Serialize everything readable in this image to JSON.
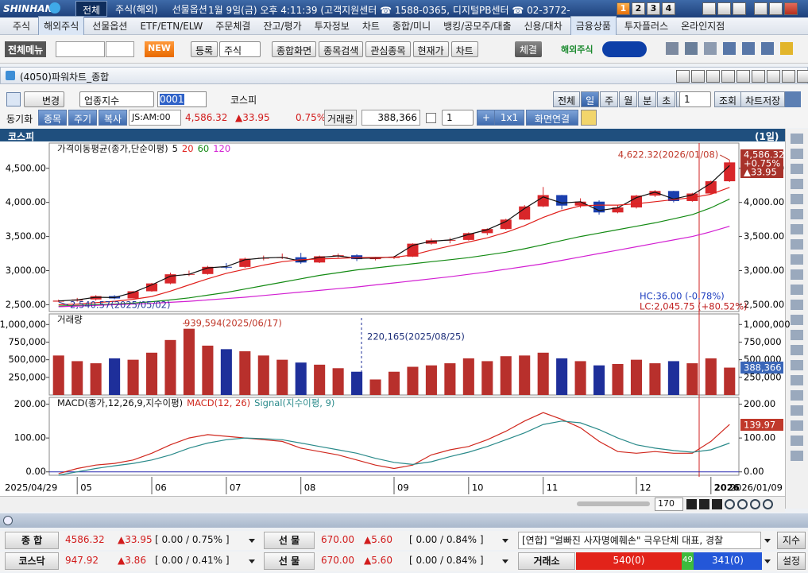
{
  "header": {
    "logo": "SHINHAN",
    "tabs": [
      "전체",
      "주식(해외)",
      "선물옵션"
    ],
    "info": "1월 9일(금) 오후 4:11:39 (고객지원센터 ☎ 1588-0365, 디지털PB센터 ☎ 02-3772-",
    "workspaces": [
      "1",
      "2",
      "3",
      "4"
    ]
  },
  "menu": [
    "주식",
    "해외주식",
    "선물옵션",
    "ETF/ETN/ELW",
    "주문체결",
    "잔고/평가",
    "투자정보",
    "차트",
    "종합/미니",
    "뱅킹/공모주/대출",
    "신용/대차",
    "금융상품",
    "투자플러스",
    "온라인지점"
  ],
  "toolbar": {
    "all_menu": "전체메뉴",
    "new": "NEW",
    "register": "등록",
    "market": "주식",
    "buttons": [
      "종합화면",
      "종목검색",
      "관심종목",
      "현재가",
      "차트"
    ],
    "fill": "체결",
    "overseas": "해외주식"
  },
  "window": {
    "title": "(4050)파워차트_종합"
  },
  "controls": {
    "change": "변경",
    "sector": "업종지수",
    "code": "0001",
    "name": "코스피",
    "periods": [
      "전체",
      "일",
      "주",
      "월",
      "분",
      "초",
      "틱"
    ],
    "count": "1",
    "query": "조회",
    "save": "차트저장"
  },
  "quote": {
    "sync": "동기화",
    "item": "종목",
    "cycle": "주기",
    "copy": "복사",
    "time": "JS:AM:00",
    "price": "4,586.32",
    "change": "▲33.95",
    "rate": "0.75%",
    "volume_label": "거래량",
    "volume": "388,366",
    "layout_count": "1",
    "plus": "+",
    "grid": "1x1",
    "link": "화면연결"
  },
  "chart_header": {
    "name": "코스피",
    "period": "(1일)"
  },
  "scroll": {
    "count": "170"
  },
  "status": [
    {
      "label": "종 합",
      "price": "4586.32",
      "change": "▲33.95",
      "range": "[ 0.00 / 0.75% ]",
      "fut_label": "선 물",
      "fut_price": "670.00",
      "fut_change": "▲5.60",
      "fut_range": "[ 0.00 / 0.84% ]",
      "news": "[연합] \"얼빠진 사자명예훼손\" 극우단체 대표, 경찰",
      "button": "지수"
    },
    {
      "label": "코스닥",
      "price": "947.92",
      "change": "▲3.86",
      "range": "[ 0.00 / 0.41% ]",
      "fut_label": "선 물",
      "fut_price": "670.00",
      "fut_change": "▲5.60",
      "fut_range": "[ 0.00 / 0.84% ]",
      "breadth_label": "거래소",
      "advance": "540(0)",
      "flat": "49",
      "decline": "341(0)",
      "button": "설정"
    }
  ],
  "chart_data": [
    {
      "type": "candlestick",
      "legend": "가격이동평균(종가,단순이평)",
      "open": [
        2545,
        2560,
        2577,
        2626,
        2592,
        2697,
        2812,
        2946,
        2950,
        3055,
        3054,
        3175,
        3188,
        3196,
        3119,
        3210,
        3225,
        3168,
        3186,
        3205,
        3395,
        3445,
        3450,
        3549,
        3610,
        3748,
        3941,
        4107,
        3953,
        4011,
        3853,
        3926,
        4100,
        4167,
        4020,
        4130,
        4310
      ],
      "high": [
        2575,
        2600,
        2640,
        2640,
        2700,
        2820,
        2970,
        3000,
        3070,
        3110,
        3190,
        3220,
        3250,
        3260,
        3220,
        3250,
        3240,
        3200,
        3215,
        3400,
        3470,
        3480,
        3560,
        3620,
        3760,
        3960,
        4226,
        4110,
        4060,
        4030,
        3960,
        4110,
        4180,
        4170,
        4140,
        4320,
        4622.32
      ],
      "low": [
        2540.57,
        2545,
        2560,
        2580,
        2590,
        2690,
        2800,
        2920,
        2940,
        3020,
        3040,
        3150,
        3170,
        3100,
        3110,
        3190,
        3140,
        3150,
        3170,
        3200,
        3380,
        3400,
        3440,
        3520,
        3600,
        3740,
        3930,
        3900,
        3920,
        3820,
        3840,
        3910,
        4080,
        4000,
        4010,
        4120,
        4300
      ],
      "close": [
        2560,
        2577,
        2626,
        2592,
        2697,
        2812,
        2946,
        2950,
        3055,
        3054,
        3175,
        3188,
        3196,
        3119,
        3210,
        3225,
        3168,
        3186,
        3205,
        3395,
        3445,
        3450,
        3549,
        3610,
        3748,
        3941,
        4107,
        3953,
        4011,
        3853,
        3926,
        4100,
        4167,
        4020,
        4130,
        4310,
        4586.32
      ],
      "up_color": "#d8262a",
      "down_color": "#1b3fae",
      "series": [
        {
          "name": "5",
          "color": "#111111",
          "values": [
            2555,
            2570,
            2610,
            2605,
            2680,
            2790,
            2920,
            2945,
            3040,
            3060,
            3160,
            3185,
            3195,
            3140,
            3195,
            3215,
            3180,
            3185,
            3200,
            3370,
            3430,
            3450,
            3530,
            3600,
            3720,
            3910,
            4080,
            3990,
            4010,
            3880,
            3920,
            4070,
            4150,
            4050,
            4110,
            4280,
            4540
          ]
        },
        {
          "name": "20",
          "color": "#e0201c",
          "values": [
            2500,
            2510,
            2530,
            2550,
            2580,
            2620,
            2700,
            2790,
            2880,
            2960,
            3020,
            3080,
            3130,
            3160,
            3170,
            3180,
            3190,
            3195,
            3195,
            3230,
            3300,
            3360,
            3420,
            3480,
            3560,
            3660,
            3780,
            3880,
            3950,
            3960,
            3960,
            3980,
            4010,
            4040,
            4070,
            4120,
            4220
          ]
        },
        {
          "name": "60",
          "color": "#138a13",
          "values": [
            2480,
            2490,
            2500,
            2510,
            2525,
            2545,
            2570,
            2600,
            2640,
            2680,
            2730,
            2780,
            2830,
            2880,
            2930,
            2970,
            3010,
            3040,
            3070,
            3100,
            3130,
            3160,
            3190,
            3230,
            3270,
            3320,
            3380,
            3440,
            3500,
            3550,
            3600,
            3650,
            3700,
            3760,
            3820,
            3920,
            4050
          ]
        },
        {
          "name": "120",
          "color": "#d21fd2",
          "values": [
            2470,
            2480,
            2490,
            2500,
            2510,
            2520,
            2535,
            2550,
            2570,
            2590,
            2610,
            2635,
            2660,
            2685,
            2710,
            2735,
            2760,
            2790,
            2820,
            2850,
            2880,
            2910,
            2945,
            2980,
            3020,
            3060,
            3100,
            3150,
            3200,
            3250,
            3300,
            3350,
            3400,
            3450,
            3500,
            3570,
            3650
          ]
        }
      ],
      "ylim": [
        2400,
        4870
      ],
      "yticks": [
        {
          "value": 2500,
          "label": "2,500.00"
        },
        {
          "value": 3000,
          "label": "3,000.00"
        },
        {
          "value": 3500,
          "label": "3,500.00"
        },
        {
          "value": 4000,
          "label": "4,000.00"
        },
        {
          "value": 4500,
          "label": "4,500.00"
        }
      ],
      "annotations": {
        "high": "4,622.32(2026/01/08)",
        "low": "2,540.57(2025/05/02)",
        "hc": "HC:36.00 (-0.78%)",
        "lc": "LC:2,045.75 (+80.52%)",
        "last_price": "4,586.32",
        "last_pct": "+0.75%",
        "last_change": "▲33.95"
      }
    },
    {
      "type": "bar",
      "legend": "거래량",
      "values": [
        560000,
        480000,
        450000,
        520000,
        500000,
        600000,
        780000,
        939594,
        700000,
        650000,
        620000,
        560000,
        500000,
        460000,
        430000,
        380000,
        330000,
        220165,
        330000,
        400000,
        420000,
        450000,
        520000,
        480000,
        550000,
        560000,
        600000,
        520000,
        480000,
        420000,
        440000,
        500000,
        450000,
        480000,
        450000,
        520000,
        388366
      ],
      "up_color": "#b8302c",
      "down_color": "#1e2f9a",
      "ylim": [
        0,
        1150000
      ],
      "yticks": [
        {
          "value": 250000,
          "label": "250,000"
        },
        {
          "value": 500000,
          "label": "500,000"
        },
        {
          "value": 750000,
          "label": "750,000"
        },
        {
          "value": 1000000,
          "label": "1,000,000"
        }
      ],
      "annotations": {
        "max": "939,594(2025/06/17)",
        "min": "220,165(2025/08/25)",
        "last": "388,366"
      }
    },
    {
      "type": "line",
      "legend": "MACD(종가,12,26,9,지수이평)",
      "categories": [
        "2025/04/29",
        "05",
        null,
        null,
        null,
        "06",
        null,
        null,
        null,
        "07",
        null,
        null,
        null,
        "08",
        null,
        null,
        null,
        null,
        "09",
        null,
        null,
        null,
        "10",
        null,
        null,
        null,
        "11",
        null,
        null,
        null,
        null,
        "12",
        null,
        null,
        null,
        "2026",
        "2026/01/09"
      ],
      "series": [
        {
          "name": "MACD(12, 26)",
          "color": "#d0281e",
          "values": [
            -5,
            10,
            20,
            25,
            35,
            55,
            80,
            100,
            110,
            105,
            100,
            95,
            90,
            70,
            60,
            50,
            35,
            20,
            10,
            20,
            50,
            65,
            75,
            95,
            120,
            150,
            175,
            155,
            130,
            90,
            60,
            55,
            60,
            55,
            55,
            90,
            139.97
          ]
        },
        {
          "name": "Signal(지수이평, 9)",
          "color": "#2a8a8a",
          "values": [
            -10,
            0,
            10,
            18,
            25,
            35,
            50,
            70,
            85,
            95,
            100,
            98,
            95,
            85,
            75,
            65,
            55,
            40,
            28,
            22,
            30,
            45,
            58,
            75,
            95,
            115,
            140,
            150,
            145,
            125,
            100,
            80,
            70,
            63,
            58,
            65,
            85
          ]
        }
      ],
      "ylim": [
        -10,
        220
      ],
      "yticks": [
        {
          "value": 0,
          "label": "0.00"
        },
        {
          "value": 100,
          "label": "100.00"
        },
        {
          "value": 200,
          "label": "200.00"
        }
      ],
      "annotations": {
        "last": "139.97"
      }
    }
  ]
}
